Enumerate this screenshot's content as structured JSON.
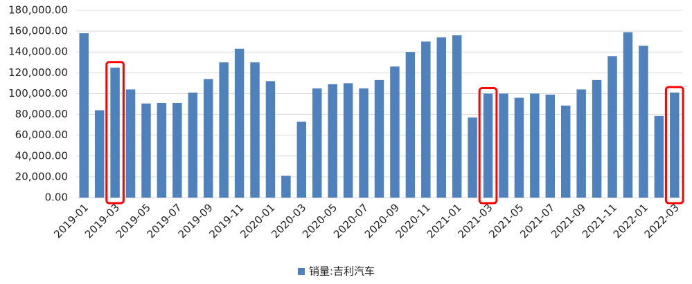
{
  "chart_data": {
    "type": "bar",
    "categories": [
      "2019-01",
      null,
      "2019-03",
      null,
      "2019-05",
      null,
      "2019-07",
      null,
      "2019-09",
      null,
      "2019-11",
      null,
      "2020-01",
      null,
      "2020-03",
      null,
      "2020-05",
      null,
      "2020-07",
      null,
      "2020-09",
      null,
      "2020-11",
      null,
      "2021-01",
      null,
      "2021-03",
      null,
      "2021-05",
      null,
      "2021-07",
      null,
      "2021-09",
      null,
      "2021-11",
      null,
      "2022-01",
      null,
      "2022-03"
    ],
    "series": [
      {
        "name": "销量:吉利汽车",
        "color": "#4f81bd",
        "values": [
          158000,
          84000,
          125000,
          104000,
          90500,
          91000,
          91000,
          101000,
          114000,
          130000,
          143000,
          130000,
          112000,
          21000,
          73000,
          105000,
          109000,
          110000,
          105000,
          113000,
          126000,
          140000,
          150000,
          154000,
          156000,
          77000,
          100000,
          100000,
          96000,
          100000,
          99000,
          88500,
          104000,
          113000,
          136000,
          159000,
          146000,
          78500,
          101000
        ]
      }
    ],
    "ylim": [
      0,
      180000
    ],
    "yticks": [
      {
        "value": 0,
        "label": "0.00"
      },
      {
        "value": 20000,
        "label": "20,000.00"
      },
      {
        "value": 40000,
        "label": "40,000.00"
      },
      {
        "value": 60000,
        "label": "60,000.00"
      },
      {
        "value": 80000,
        "label": "80,000.00"
      },
      {
        "value": 100000,
        "label": "100,000.00"
      },
      {
        "value": 120000,
        "label": "120,000.00"
      },
      {
        "value": 140000,
        "label": "140,000.00"
      },
      {
        "value": 160000,
        "label": "160,000.00"
      },
      {
        "value": 180000,
        "label": "180,000.00"
      }
    ],
    "grid": true,
    "legend": "bottom",
    "highlights": [
      "2019-03",
      "2021-03",
      "2022-03"
    ],
    "highlight_color": "#ff0000"
  }
}
